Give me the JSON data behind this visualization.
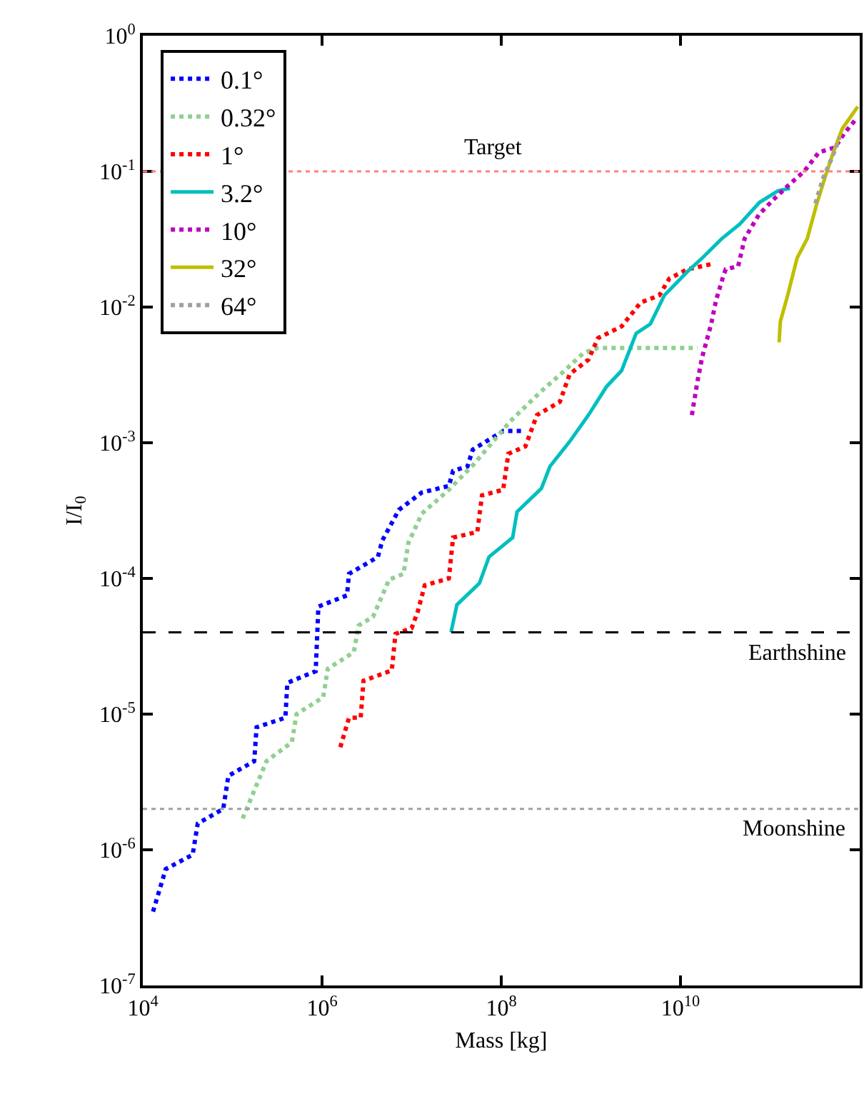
{
  "chart_data": {
    "type": "line",
    "xlabel": "Mass [kg]",
    "ylabel": "I/I$_{0}$",
    "log": "xy",
    "grid": false,
    "legend": "top left",
    "marker": "none",
    "xlim": [
      10000,
      1000000000000
    ],
    "xticks": [
      {
        "value": 10000,
        "label": "10$^{4}$"
      },
      {
        "value": 1000000,
        "label": "10$^{6}$"
      },
      {
        "value": 100000000,
        "label": "10$^{8}$"
      },
      {
        "value": 10000000000,
        "label": "10$^{10}$"
      }
    ],
    "ylim": [
      1e-07,
      1
    ],
    "yticks": [
      {
        "value": 1e-07,
        "label": "10$^{-7}$"
      },
      {
        "value": 1e-06,
        "label": "10$^{-6}$"
      },
      {
        "value": 1e-05,
        "label": "10$^{-5}$"
      },
      {
        "value": 0.0001,
        "label": "10$^{-4}$"
      },
      {
        "value": 0.001,
        "label": "10$^{-3}$"
      },
      {
        "value": 0.01,
        "label": "10$^{-2}$"
      },
      {
        "value": 0.1,
        "label": "10$^{-1}$"
      },
      {
        "value": 1,
        "label": "10$^{0}$"
      }
    ],
    "ref_lines": [
      {
        "axis": "y",
        "value": 0.1,
        "label": "Target",
        "color": "#ff8080",
        "line_style": "dotted"
      },
      {
        "axis": "y",
        "value": 4e-05,
        "label": "Earthshine",
        "color": "#000000",
        "line_style": "dashed"
      },
      {
        "axis": "y",
        "value": 2e-06,
        "label": "Moonshine",
        "color": "#a0a0a0",
        "line_style": "dotted"
      }
    ],
    "series": [
      {
        "name": "0.1°",
        "color": "#0000ff",
        "line_style": "dotted",
        "x": [
          13000,
          18000,
          36000,
          41000,
          79000,
          90000,
          175000,
          186000,
          390000,
          410000,
          850000,
          910000,
          1900000,
          2000000,
          4200000,
          4700000,
          7200000,
          13000000,
          26000000,
          29000000,
          42000000,
          48000000,
          105000000,
          180000000
        ],
        "values": [
          3.5e-07,
          7.2e-07,
          9.2e-07,
          1.56e-06,
          2e-06,
          3.5e-06,
          4.5e-06,
          8e-06,
          9.4e-06,
          1.7e-05,
          2.07e-05,
          6.2e-05,
          7.5e-05,
          0.000108,
          0.000144,
          0.00019,
          0.00032,
          0.00043,
          0.00048,
          0.00062,
          0.00067,
          0.00089,
          0.00122,
          0.00122
        ]
      },
      {
        "name": "0.32°",
        "color": "#90d090",
        "line_style": "dotted",
        "x": [
          130000,
          240000,
          460000,
          520000,
          1030000,
          1160000,
          2260000,
          2560000,
          3700000,
          5600000,
          8100000,
          9200000,
          13000000,
          26000000,
          50000000,
          126000000,
          280000000,
          510000000,
          830000000,
          1200000000,
          15500000000
        ],
        "values": [
          1.7e-06,
          4.5e-06,
          6.2e-06,
          1e-05,
          1.33e-05,
          2.16e-05,
          2.86e-05,
          4.5e-05,
          5.2e-05,
          9.8e-05,
          0.000108,
          0.000183,
          0.0003,
          0.00045,
          0.0007,
          0.00144,
          0.0024,
          0.0034,
          0.0046,
          0.005,
          0.005
        ]
      },
      {
        "name": "1°",
        "color": "#ff0000",
        "line_style": "dotted",
        "x": [
          1600000,
          2000000,
          2700000,
          2900000,
          6000000,
          6600000,
          10000000,
          11700000,
          14000000,
          26000000,
          29000000,
          54000000,
          61000000,
          105000000,
          120000000,
          186000000,
          250000000,
          450000000,
          580000000,
          940000000,
          1200000000,
          2200000000,
          3600000000,
          5800000000,
          7500000000,
          12000000000,
          22000000000
        ],
        "values": [
          5.7e-06,
          9.4e-06,
          9.4e-06,
          1.76e-05,
          2.1e-05,
          3.9e-05,
          4.3e-05,
          5.7e-05,
          8.9e-05,
          0.0001,
          0.0002,
          0.00022,
          0.00041,
          0.00045,
          0.00083,
          0.00094,
          0.0016,
          0.002,
          0.0032,
          0.0041,
          0.0059,
          0.0072,
          0.0108,
          0.0122,
          0.0162,
          0.019,
          0.0207
        ]
      },
      {
        "name": "3.2°",
        "color": "#00bfbf",
        "line_style": "solid",
        "x": [
          27500000,
          32000000,
          57000000,
          73000000,
          134000000,
          150000000,
          280000000,
          350000000,
          580000000,
          940000000,
          1500000000,
          2200000000,
          3200000000,
          4600000000,
          6600000000,
          12000000000,
          17500000000,
          29000000000,
          46000000000,
          76000000000,
          123000000000,
          167000000000
        ],
        "values": [
          4e-05,
          6.4e-05,
          9.2e-05,
          0.000144,
          0.0002,
          0.00031,
          0.00046,
          0.00067,
          0.00102,
          0.0016,
          0.0026,
          0.0034,
          0.0064,
          0.0075,
          0.0122,
          0.0183,
          0.023,
          0.032,
          0.041,
          0.059,
          0.072,
          0.075
        ]
      },
      {
        "name": "10°",
        "color": "#bf00bf",
        "line_style": "dotted",
        "x": [
          13400000000,
          15500000000,
          17500000000,
          22000000000,
          25000000000,
          30000000000,
          32000000000,
          44000000000,
          52000000000,
          75000000000,
          109000000000,
          157000000000,
          240000000000,
          350000000000,
          530000000000,
          670000000000,
          910000000000
        ],
        "values": [
          0.0016,
          0.00286,
          0.0043,
          0.0075,
          0.0113,
          0.0169,
          0.019,
          0.02,
          0.032,
          0.048,
          0.062,
          0.078,
          0.1,
          0.138,
          0.15,
          0.19,
          0.243
        ]
      },
      {
        "name": "32°",
        "color": "#bfbf00",
        "line_style": "solid",
        "x": [
          126000000000,
          130000000000,
          157000000000,
          200000000000,
          260000000000,
          330000000000,
          420000000000,
          500000000000,
          640000000000,
          760000000000,
          950000000000
        ],
        "values": [
          0.0055,
          0.0078,
          0.0122,
          0.023,
          0.032,
          0.057,
          0.095,
          0.134,
          0.207,
          0.243,
          0.3
        ]
      },
      {
        "name": "64°",
        "color": "#a0a0a0",
        "line_style": "dotted",
        "x": [
          320000000000,
          390000000000,
          500000000000,
          600000000000
        ],
        "values": [
          0.058,
          0.089,
          0.13,
          0.18
        ]
      }
    ]
  }
}
